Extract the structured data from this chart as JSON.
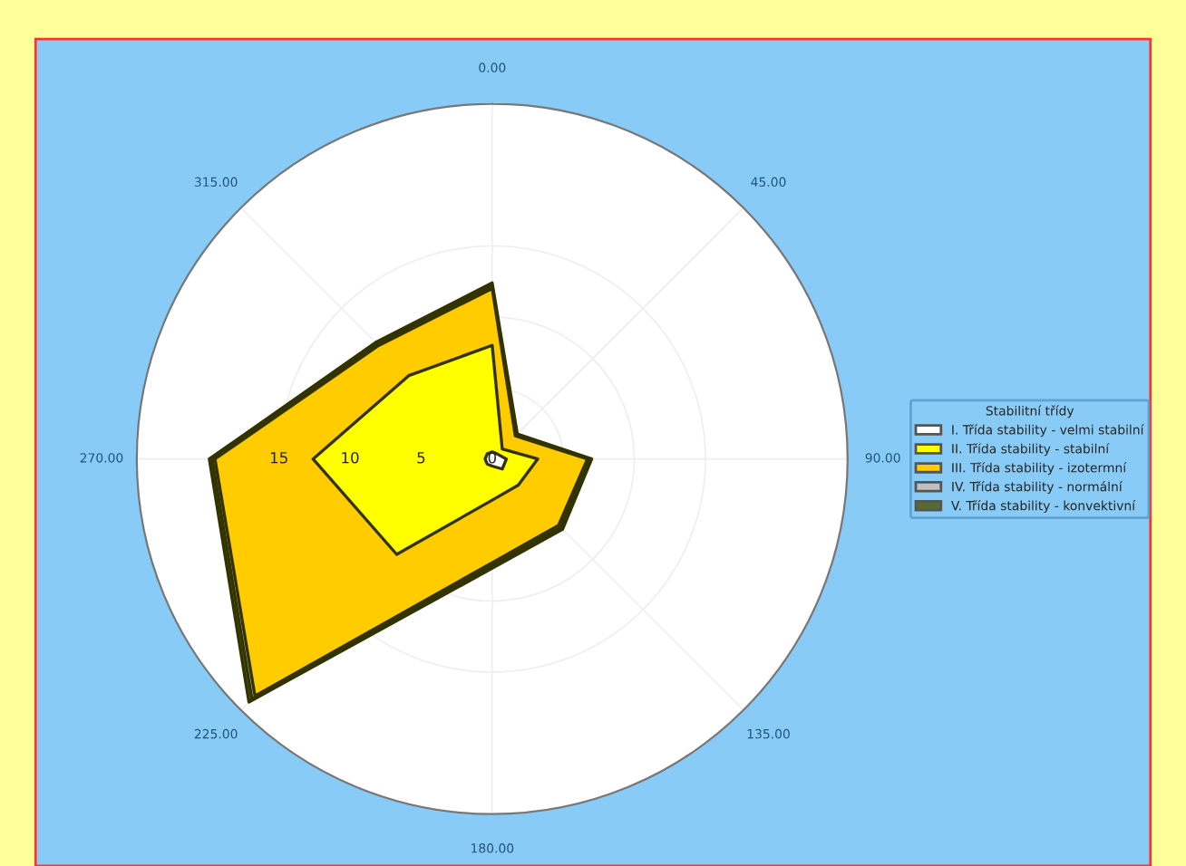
{
  "chart_data": {
    "type": "radar",
    "categories": [
      "0.00",
      "45.00",
      "90.00",
      "135.00",
      "180.00",
      "225.00",
      "270.00",
      "315.00"
    ],
    "ylim": [
      0,
      25
    ],
    "yticks": [
      0,
      5,
      10,
      15
    ],
    "grid": true,
    "legend": "right",
    "legend_title": "Stabilitní třídy",
    "series": [
      {
        "name": "I. Třída stability - velmi stabilní",
        "color": "#ffffff",
        "values": [
          0.5,
          0.5,
          1,
          1,
          0.5,
          0.5,
          0.5,
          0.5
        ]
      },
      {
        "name": "II. Třída stability - stabilní",
        "color": "#ffff00",
        "values": [
          8,
          1,
          3.2,
          2.6,
          2.9,
          9.5,
          12.6,
          8.3
        ]
      },
      {
        "name": "III. Třída stability - izotermní",
        "color": "#ffcc00",
        "values": [
          12,
          2.3,
          6.7,
          6.6,
          7.3,
          23.6,
          19.5,
          11.3
        ]
      },
      {
        "name": "IV. Třída stability - normální",
        "color": "#c0c0c0",
        "values": [
          12.2,
          2.4,
          6.85,
          6.8,
          7.5,
          23.9,
          19.7,
          11.45
        ]
      },
      {
        "name": "V. Třída stability - konvektivní",
        "color": "#556b2f",
        "values": [
          12.4,
          2.5,
          7,
          7,
          7.7,
          24.2,
          19.9,
          11.6
        ]
      }
    ]
  }
}
